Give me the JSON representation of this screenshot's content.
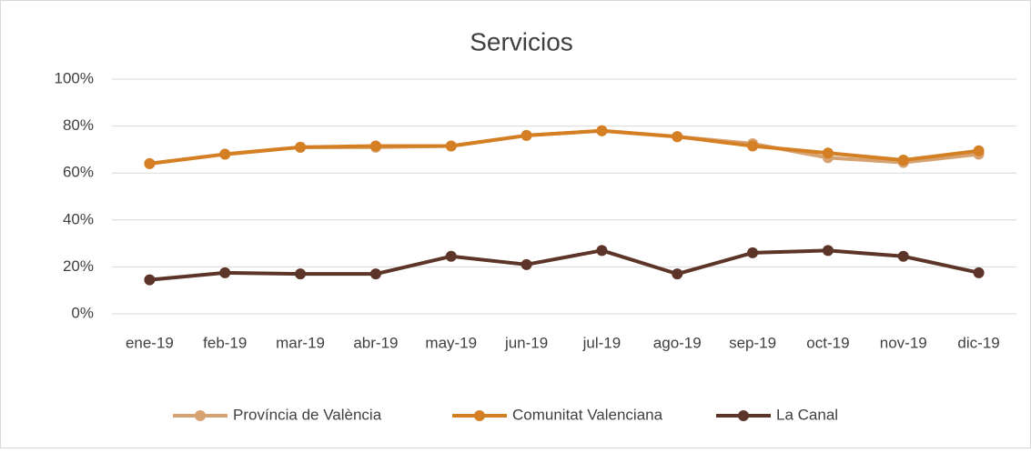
{
  "chart_data": {
    "type": "line",
    "title": "Servicios",
    "categories": [
      "ene-19",
      "feb-19",
      "mar-19",
      "abr-19",
      "may-19",
      "jun-19",
      "jul-19",
      "ago-19",
      "sep-19",
      "oct-19",
      "nov-19",
      "dic-19"
    ],
    "series": [
      {
        "name": "Província de València",
        "color": "#d6a272",
        "values": [
          64,
          68,
          71,
          71,
          71.5,
          76,
          78,
          75.5,
          72.5,
          66.5,
          64.5,
          68
        ]
      },
      {
        "name": "Comunitat Valenciana",
        "color": "#d47f23",
        "values": [
          64,
          68,
          71,
          71.5,
          71.5,
          76,
          78,
          75.5,
          71.5,
          68.5,
          65.5,
          69.5
        ]
      },
      {
        "name": "La Canal",
        "color": "#5c3428",
        "values": [
          14.5,
          17.5,
          17,
          17,
          24.5,
          21,
          27,
          17,
          26,
          27,
          24.5,
          17.5
        ]
      }
    ],
    "ylim": [
      0,
      100
    ],
    "yticks": [
      {
        "value": 0,
        "label": "0%"
      },
      {
        "value": 20,
        "label": "20%"
      },
      {
        "value": 40,
        "label": "40%"
      },
      {
        "value": 60,
        "label": "60%"
      },
      {
        "value": 80,
        "label": "80%"
      },
      {
        "value": 100,
        "label": "100%"
      }
    ],
    "grid": true,
    "legend": "bottom"
  }
}
